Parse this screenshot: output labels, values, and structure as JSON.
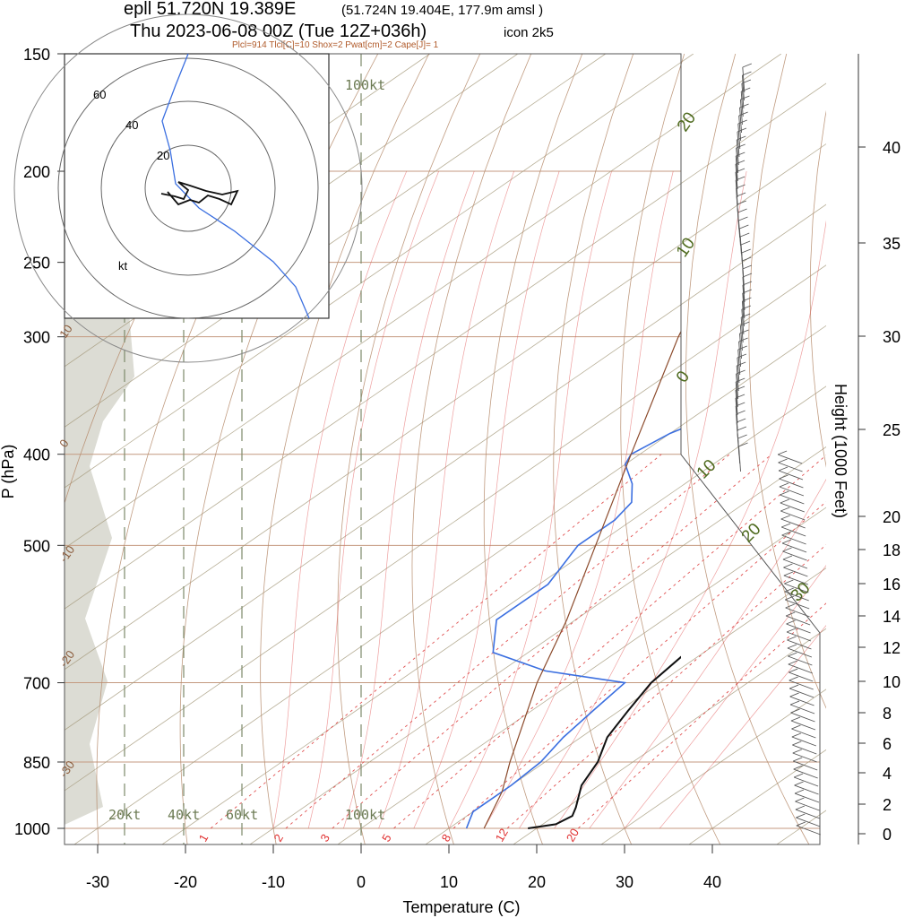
{
  "header": {
    "station_line": "epll 51.720N 19.389E",
    "station_detail": "(51.724N 19.404E, 177.9m amsl )",
    "time_line": "Thu 2023-06-08 00Z (Tue 12Z+036h)",
    "model": "icon 2k5",
    "indices": "Plcl=914 Tlcl[C]=10 Shox=2 Pwat[cm]=2 Cape[J]= 1"
  },
  "axes": {
    "ylabel": "P (hPa)",
    "xlabel": "Temperature (C)",
    "y2label": "Height (1000 Feet)"
  },
  "hodograph": {
    "ring_labels": [
      "20",
      "40",
      "60"
    ],
    "unit": "kt"
  },
  "wind_scale_labels": [
    "20kt",
    "40kt",
    "60kt",
    "100kt"
  ],
  "mixing_ratio_labels": [
    "1",
    "2",
    "3",
    "5",
    "8",
    "12",
    "20"
  ],
  "colors": {
    "temperature": "#111111",
    "dewpoint": "#3b6fe0",
    "parcel": "#8b4a2b",
    "dry_adiabat": "#b58a6a",
    "moist_adiabat": "#a59a7c",
    "isobar": "#c49a80",
    "isotherm_label": "#4f6b1f",
    "mixing_ratio": "#e05050",
    "terrain": "#dcdcd4"
  },
  "chart_data": {
    "type": "line",
    "title": "epll 51.720N 19.389E",
    "xlabel": "Temperature (C)",
    "ylabel": "P (hPa)",
    "x_ticks": [
      -30,
      -20,
      -10,
      0,
      10,
      20,
      30,
      40
    ],
    "y_ticks": [
      150,
      200,
      250,
      300,
      400,
      500,
      700,
      850,
      1000
    ],
    "y2_ticks": [
      0,
      2,
      4,
      6,
      8,
      10,
      12,
      14,
      16,
      18,
      20,
      25,
      30,
      35,
      40
    ],
    "skew_isotherm_labels": [
      20,
      10,
      0,
      -10,
      -20,
      -30
    ],
    "skew_isotherm_labels_right": [
      10,
      20,
      30
    ],
    "series": [
      {
        "name": "Temperature",
        "values": [
          [
            1000,
            19
          ],
          [
            990,
            21.5
          ],
          [
            970,
            22
          ],
          [
            950,
            21
          ],
          [
            900,
            18
          ],
          [
            850,
            16
          ],
          [
            800,
            13
          ],
          [
            750,
            11
          ],
          [
            700,
            9
          ],
          [
            650,
            8
          ],
          [
            600,
            7
          ],
          [
            550,
            6
          ],
          [
            500,
            4
          ],
          [
            450,
            2
          ],
          [
            400,
            -1
          ],
          [
            350,
            -4
          ],
          [
            300,
            -7
          ],
          [
            280,
            -9
          ],
          [
            250,
            -14
          ],
          [
            230,
            -15
          ],
          [
            210,
            -12
          ],
          [
            200,
            -10
          ],
          [
            180,
            -6
          ],
          [
            160,
            -4
          ],
          [
            150,
            -4
          ]
        ]
      },
      {
        "name": "Dewpoint",
        "values": [
          [
            1000,
            12
          ],
          [
            980,
            11
          ],
          [
            960,
            10
          ],
          [
            940,
            10
          ],
          [
            900,
            10
          ],
          [
            850,
            9.5
          ],
          [
            800,
            8
          ],
          [
            750,
            7
          ],
          [
            700,
            6
          ],
          [
            680,
            -5
          ],
          [
            650,
            -14
          ],
          [
            600,
            -19
          ],
          [
            550,
            -19
          ],
          [
            500,
            -22
          ],
          [
            470,
            -22
          ],
          [
            450,
            -23
          ],
          [
            430,
            -26
          ],
          [
            410,
            -30
          ],
          [
            400,
            -31
          ],
          [
            380,
            -30
          ],
          [
            350,
            -26
          ],
          [
            320,
            -7
          ],
          [
            300,
            -8
          ],
          [
            290,
            -6
          ],
          [
            270,
            -9
          ],
          [
            250,
            -15
          ],
          [
            230,
            -19
          ],
          [
            210,
            -21
          ],
          [
            200,
            -20
          ],
          [
            180,
            -23
          ],
          [
            160,
            -23
          ],
          [
            150,
            -23
          ]
        ]
      },
      {
        "name": "Parcel",
        "values": [
          [
            1000,
            14
          ],
          [
            914,
            10
          ],
          [
            850,
            6
          ],
          [
            700,
            -4
          ],
          [
            600,
            -11
          ],
          [
            500,
            -20
          ],
          [
            400,
            -31
          ],
          [
            300,
            -45
          ],
          [
            250,
            -53
          ],
          [
            200,
            -60
          ],
          [
            150,
            -66
          ]
        ]
      }
    ],
    "hodograph_max_speed_kt": 60
  }
}
